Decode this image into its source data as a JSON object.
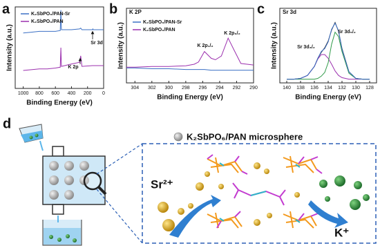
{
  "chart_data": [
    {
      "type": "line",
      "panel": "a",
      "x_label": "Binding Energy (eV)",
      "y_label": "Intensity (a.u.)",
      "x": [
        1000,
        900,
        800,
        700,
        600,
        540,
        532,
        525,
        400,
        300,
        285,
        270,
        140,
        134,
        130,
        50,
        0
      ],
      "xlim": [
        1100,
        0
      ],
      "xticks": [
        1000,
        800,
        600,
        400,
        200,
        0
      ],
      "ylim": [
        0,
        100
      ],
      "legend": "upper left",
      "series": [
        {
          "name": "K₂SbPO₆/PAN-Sr",
          "color": "#3a6fc4",
          "values": [
            68,
            69,
            70,
            70,
            70,
            71,
            96,
            72,
            72,
            73,
            74,
            72,
            72,
            73,
            72,
            72,
            72
          ]
        },
        {
          "name": "K₂SbPO₆/PAN",
          "color": "#9b2fae",
          "values": [
            22,
            23,
            24,
            24,
            25,
            26,
            50,
            27,
            30,
            32,
            40,
            27,
            28,
            28,
            28,
            28,
            28
          ]
        }
      ],
      "annotations": [
        "Sr 3d",
        "K 2p"
      ]
    },
    {
      "type": "line",
      "panel": "b",
      "title": "K 2P",
      "x_label": "Binding Energy (eV)",
      "y_label": "Intensity (a.u.)",
      "x": [
        305,
        304,
        302,
        300,
        298,
        297,
        296.5,
        295.8,
        295,
        294.5,
        293.8,
        293,
        292.3,
        291.5,
        290
      ],
      "xlim": [
        305,
        290
      ],
      "xticks": [
        304,
        302,
        300,
        298,
        296,
        294,
        292,
        290
      ],
      "ylim": [
        0,
        100
      ],
      "legend": "upper left",
      "series": [
        {
          "name": "K₂SbPO₆/PAN-Sr",
          "color": "#3a6fc4",
          "values": [
            20,
            20,
            19,
            19,
            18,
            18,
            18,
            18,
            17,
            17,
            17,
            17,
            17,
            17,
            17
          ]
        },
        {
          "name": "K₂SbPO₆/PAN",
          "color": "#9b2fae",
          "values": [
            21,
            21,
            22,
            22,
            23,
            25,
            28,
            42,
            33,
            31,
            36,
            60,
            44,
            26,
            24
          ]
        }
      ],
      "annotations": [
        "K 2p₁/₂",
        "K 2p₃/₂"
      ]
    },
    {
      "type": "line",
      "panel": "c",
      "title": "Sr 3d",
      "x_label": "Binding Energy (eV)",
      "y_label": "Intensity (a.u.)",
      "x": [
        140,
        139,
        138,
        137,
        136,
        135.5,
        135,
        134.5,
        134,
        133.5,
        133,
        132.5,
        132,
        131,
        130,
        129,
        128
      ],
      "xlim": [
        141,
        127
      ],
      "xticks": [
        140,
        138,
        136,
        134,
        132,
        130,
        128
      ],
      "ylim": [
        0,
        100
      ],
      "series": [
        {
          "color": "#222222",
          "values": [
            5,
            5,
            6,
            10,
            22,
            33,
            41,
            47,
            56,
            71,
            81,
            69,
            46,
            15,
            6,
            5,
            5
          ]
        },
        {
          "color": "#9b2fae",
          "values": [
            5,
            5,
            6,
            10,
            22,
            32,
            38,
            38,
            33,
            25,
            16,
            10,
            7,
            5,
            5,
            5,
            5
          ]
        },
        {
          "color": "#2f9a48",
          "values": [
            5,
            5,
            5,
            5,
            5,
            6,
            9,
            14,
            27,
            52,
            68,
            62,
            42,
            13,
            6,
            5,
            5
          ]
        },
        {
          "color": "#3a6fc4",
          "values": [
            5,
            5,
            6,
            10,
            22,
            33,
            42,
            46,
            55,
            72,
            80,
            70,
            45,
            15,
            6,
            5,
            5
          ]
        }
      ],
      "annotations": [
        "Sr 3d₃/₂",
        "Sr 3d₅/₂"
      ]
    }
  ],
  "diagram": {
    "panel": "d",
    "title": "K₂SbPO₆/PAN microsphere",
    "labels": [
      "Sr²⁺",
      "K⁺"
    ]
  }
}
